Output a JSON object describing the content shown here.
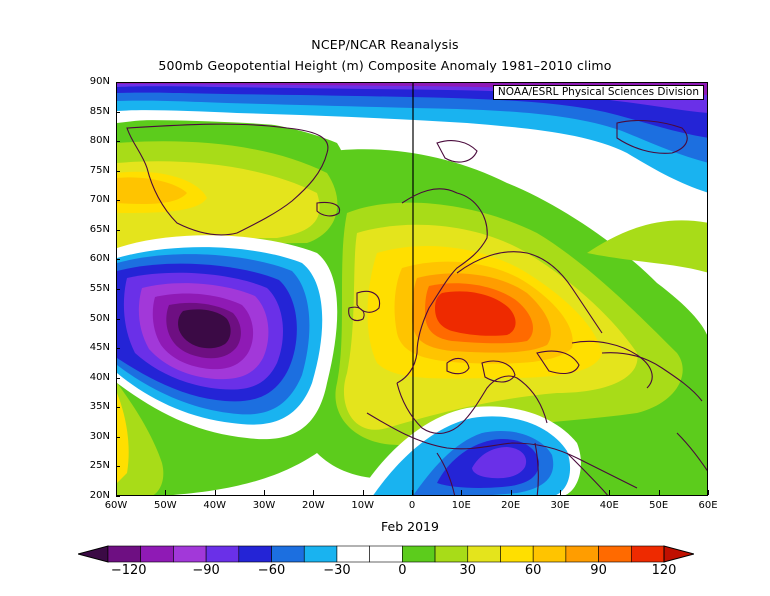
{
  "title_line1": "NCEP/NCAR Reanalysis",
  "title_line2": "500mb Geopotential Height (m) Composite Anomaly 1981–2010 climo",
  "credit": "NOAA/ESRL Physical Sciences Division",
  "period": "Feb 2019",
  "map": {
    "projection": "equirectangular",
    "lon_range": [
      -60,
      60
    ],
    "lat_range": [
      20,
      90
    ],
    "lat_ticks": [
      "20N",
      "25N",
      "30N",
      "35N",
      "40N",
      "45N",
      "50N",
      "55N",
      "60N",
      "65N",
      "70N",
      "75N",
      "80N",
      "85N",
      "90N"
    ],
    "lon_ticks": [
      "60W",
      "50W",
      "40W",
      "30W",
      "20W",
      "10W",
      "0",
      "10E",
      "20E",
      "30E",
      "40E",
      "50E",
      "60E"
    ],
    "anomaly_centers": [
      {
        "name": "negative low west of Atlantic",
        "lon": -36,
        "lat": 50,
        "value_m": -120
      },
      {
        "name": "positive high over central Europe",
        "lon": 9,
        "lat": 51,
        "value_m": 120
      },
      {
        "name": "positive over Greenland",
        "lon": -55,
        "lat": 72,
        "value_m": 60
      },
      {
        "name": "negative over north Africa",
        "lon": 17,
        "lat": 27,
        "value_m": -60
      },
      {
        "name": "negative polar cap",
        "lon": 50,
        "lat": 87,
        "value_m": -60
      }
    ]
  },
  "colorbar": {
    "labels": [
      "−120",
      "−90",
      "−60",
      "−30",
      "0",
      "30",
      "60",
      "90",
      "120"
    ],
    "colors": [
      "#3b0a45",
      "#6e0f82",
      "#8f1ab5",
      "#a238d9",
      "#6a30e8",
      "#2424d6",
      "#1c6fe0",
      "#19b3f0",
      "#ffffff",
      "#ffffff",
      "#5ccc1c",
      "#a8dc18",
      "#e4e41c",
      "#ffdf00",
      "#ffc400",
      "#ff9d00",
      "#ff6a00",
      "#ee2a00",
      "#c01000"
    ]
  }
}
